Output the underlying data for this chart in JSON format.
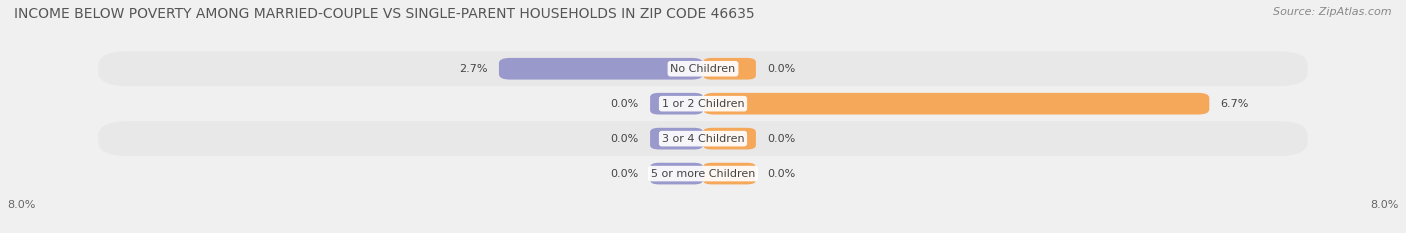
{
  "title": "INCOME BELOW POVERTY AMONG MARRIED-COUPLE VS SINGLE-PARENT HOUSEHOLDS IN ZIP CODE 46635",
  "source": "Source: ZipAtlas.com",
  "categories": [
    "No Children",
    "1 or 2 Children",
    "3 or 4 Children",
    "5 or more Children"
  ],
  "married_values": [
    2.7,
    0.0,
    0.0,
    0.0
  ],
  "single_values": [
    0.0,
    6.7,
    0.0,
    0.0
  ],
  "xlim": [
    -8.0,
    8.0
  ],
  "married_color": "#9999cc",
  "single_color": "#f5a85a",
  "bar_height": 0.62,
  "row_bg_odd": "#e8e8e8",
  "row_bg_even": "#f0f0f0",
  "fig_bg": "#f0f0f0",
  "title_fontsize": 10,
  "source_fontsize": 8,
  "label_fontsize": 8,
  "category_fontsize": 8,
  "tick_fontsize": 8,
  "zero_bar_width": 0.7,
  "left_axis_label": "8.0%",
  "right_axis_label": "8.0%"
}
